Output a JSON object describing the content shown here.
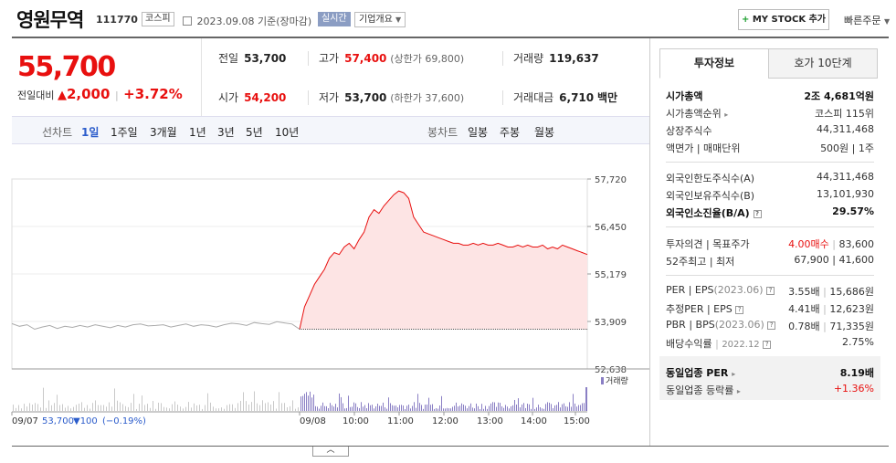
{
  "header": {
    "name": "영원무역",
    "code": "111770",
    "market": "코스피",
    "date": "2023.09.08",
    "date_suffix": "기준(장마감)",
    "realtime": "실시간",
    "company_info": "기업개요",
    "mystock": "MY STOCK 추가",
    "quick": "빠른주문"
  },
  "price": {
    "current": "55,700",
    "change_label": "전일대비",
    "change": "2,000",
    "change_pct": "+3.72%"
  },
  "quote": {
    "prev_label": "전일",
    "prev": "53,700",
    "high_label": "고가",
    "high": "57,400",
    "upper": "(상한가 69,800)",
    "volume_label": "거래량",
    "volume": "119,637",
    "open_label": "시가",
    "open": "54,200",
    "low_label": "저가",
    "low": "53,700",
    "lower": "(하한가 37,600)",
    "amount_label": "거래대금",
    "amount": "6,710",
    "amount_unit": "백만"
  },
  "tabs": {
    "line_label": "선차트",
    "line_periods": [
      "1일",
      "1주일",
      "3개월",
      "1년",
      "3년",
      "5년",
      "10년"
    ],
    "candle_label": "봉차트",
    "candle_periods": [
      "일봉",
      "주봉",
      "월봉"
    ]
  },
  "chart_data": {
    "type": "line",
    "y_ticks": [
      "57,720",
      "56,450",
      "55,179",
      "53,909",
      "52,638"
    ],
    "ylim": [
      52638,
      57720
    ],
    "prev_close": 53700,
    "volume_label": "거래량",
    "x_ticks": [
      "09/07",
      "09/08",
      "10:00",
      "11:00",
      "12:00",
      "13:00",
      "14:00",
      "15:00"
    ],
    "prev_day_summary": {
      "date": "09/07",
      "price": "53,700",
      "change": "▼100",
      "pct": "(−0.19%)"
    },
    "prev_day_series": [
      53850,
      53780,
      53820,
      53700,
      53760,
      53800,
      53720,
      53780,
      53750,
      53800,
      53760,
      53820,
      53780,
      53740,
      53800,
      53760,
      53820,
      53840,
      53790,
      53800,
      53820,
      53760,
      53800,
      53840,
      53780,
      53820,
      53800,
      53760,
      53820,
      53860,
      53840,
      53800,
      53880,
      53850,
      53830,
      53900,
      53870,
      53840,
      53700
    ],
    "today_series": [
      53700,
      54300,
      54600,
      54900,
      55100,
      55300,
      55600,
      55750,
      55700,
      55900,
      56000,
      55850,
      56100,
      56300,
      56700,
      56900,
      56800,
      57000,
      57150,
      57300,
      57400,
      57350,
      57200,
      56700,
      56500,
      56300,
      56250,
      56200,
      56150,
      56100,
      56050,
      56000,
      56000,
      55950,
      55950,
      56000,
      55950,
      56000,
      55950,
      55950,
      56000,
      55950,
      55900,
      55900,
      55950,
      55900,
      55950,
      55900,
      55900,
      55950,
      55850,
      55900,
      55850,
      55950,
      55900,
      55850,
      55800,
      55750,
      55700
    ]
  },
  "right": {
    "tab_invest": "투자정보",
    "tab_hoga": "호가 10단계",
    "rows1": [
      {
        "l": "시가총액",
        "r": "2조 4,681억원"
      },
      {
        "l": "시가총액순위",
        "r": "코스피 115위"
      },
      {
        "l": "상장주식수",
        "r": "44,311,468"
      },
      {
        "l": "액면가 | 매매단위",
        "r": "500원 | 1주"
      }
    ],
    "rows2": [
      {
        "l": "외국인한도주식수(A)",
        "r": "44,311,468"
      },
      {
        "l": "외국인보유주식수(B)",
        "r": "13,101,930"
      },
      {
        "l": "외국인소진율(B/A)",
        "r": "29.57%"
      }
    ],
    "opinion_label": "투자의견 | 목표주가",
    "opinion": "4.00매수",
    "target": "83,600",
    "w52_label": "52주최고 | 최저",
    "w52": "67,900 | 41,600",
    "per_label": "PER | EPS",
    "per_year": "(2023.06)",
    "per": "3.55배",
    "eps": "15,686원",
    "eper_label": "추정PER | EPS",
    "eper": "4.41배",
    "eeps": "12,623원",
    "pbr_label": "PBR | BPS",
    "pbr_year": "(2023.06)",
    "pbr": "0.78배",
    "bps": "71,335원",
    "div_label": "배당수익률",
    "div_year": "2022.12",
    "div": "2.75%",
    "sector_per_label": "동일업종 PER",
    "sector_per": "8.19배",
    "sector_chg_label": "동일업종 등락률",
    "sector_chg": "+1.36%"
  }
}
